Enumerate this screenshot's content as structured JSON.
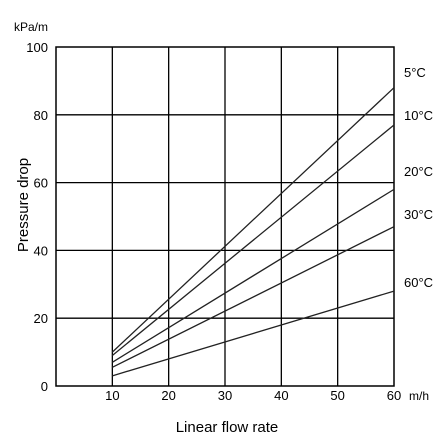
{
  "chart_data": {
    "type": "line",
    "title": "",
    "unit_label": "kPa/m",
    "xlabel": "Linear flow rate",
    "ylabel": "Pressure drop",
    "x_unit": "m/h",
    "xlim": [
      0,
      60
    ],
    "ylim": [
      0,
      100
    ],
    "x_ticks": [
      "10",
      "20",
      "30",
      "40",
      "50",
      "60"
    ],
    "y_ticks": [
      "0",
      "20",
      "40",
      "60",
      "80",
      "100"
    ],
    "grid": true,
    "legend": "direct labels at right end of each line",
    "series": [
      {
        "name": "5°C",
        "x": [
          10,
          60
        ],
        "y": [
          10,
          88
        ]
      },
      {
        "name": "10°C",
        "x": [
          10,
          60
        ],
        "y": [
          9,
          77
        ]
      },
      {
        "name": "20°C",
        "x": [
          10,
          60
        ],
        "y": [
          7,
          58
        ]
      },
      {
        "name": "30°C",
        "x": [
          10,
          60
        ],
        "y": [
          5.5,
          47
        ]
      },
      {
        "name": "60°C",
        "x": [
          10,
          60
        ],
        "y": [
          3,
          28
        ]
      }
    ]
  }
}
